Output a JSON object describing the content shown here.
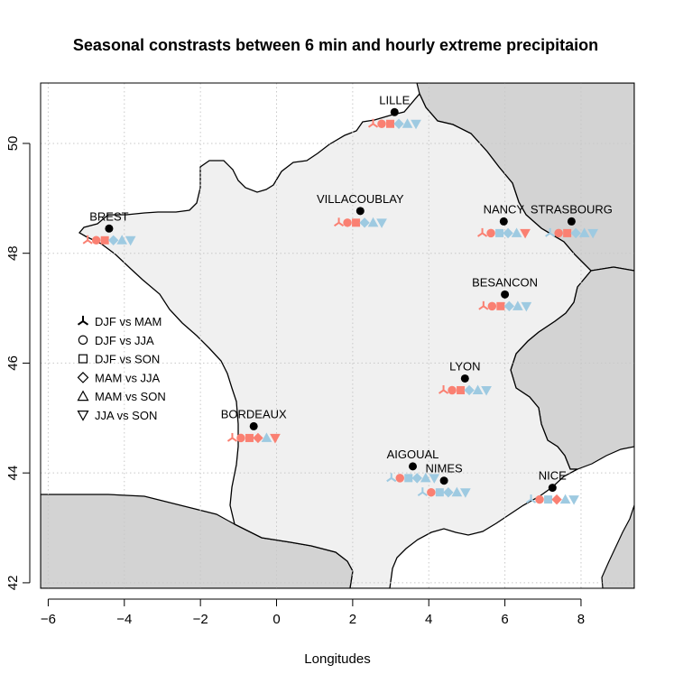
{
  "chart_data": {
    "type": "map",
    "title": "Seasonal constrasts between 6 min and hourly extreme precipitaion",
    "xlabel": "Longitudes",
    "ylabel": "",
    "xlim": [
      -6.2,
      9.4
    ],
    "ylim": [
      41.9,
      51.1
    ],
    "x_ticks": [
      -6,
      -4,
      -2,
      0,
      2,
      4,
      6,
      8
    ],
    "x_tick_labels": [
      "−6",
      "−4",
      "−2",
      "0",
      "2",
      "4",
      "6",
      "8"
    ],
    "y_ticks": [
      42,
      44,
      46,
      48,
      50
    ],
    "y_tick_labels": [
      "42",
      "44",
      "46",
      "48",
      "50"
    ],
    "grid": true,
    "colors": {
      "background_land": "#d3d3d3",
      "france_land": "#f0f0f0",
      "sea": "#ffffff",
      "salmon": "#fa8072",
      "light_blue": "#9ecae1",
      "station": "#000000"
    },
    "legend": {
      "placement": "left-middle",
      "entries": [
        {
          "symbol": "tripod",
          "label": "DJF vs MAM"
        },
        {
          "symbol": "circle",
          "label": "DJF vs JJA"
        },
        {
          "symbol": "square",
          "label": "DJF vs SON"
        },
        {
          "symbol": "diamond",
          "label": "MAM vs JJA"
        },
        {
          "symbol": "triangle-up",
          "label": "MAM vs SON"
        },
        {
          "symbol": "triangle-down",
          "label": "JJA vs SON"
        }
      ]
    },
    "stations": [
      {
        "name": "LILLE",
        "lon": 3.1,
        "lat": 50.57,
        "contrasts": [
          "salmon",
          "salmon",
          "salmon",
          "light_blue",
          "light_blue",
          "light_blue"
        ]
      },
      {
        "name": "VILLACOUBLAY",
        "lon": 2.2,
        "lat": 48.77,
        "contrasts": [
          "salmon",
          "salmon",
          "salmon",
          "light_blue",
          "light_blue",
          "light_blue"
        ]
      },
      {
        "name": "BREST",
        "lon": -4.4,
        "lat": 48.45,
        "contrasts": [
          "salmon",
          "salmon",
          "salmon",
          "light_blue",
          "light_blue",
          "light_blue"
        ]
      },
      {
        "name": "NANCY",
        "lon": 5.97,
        "lat": 48.58,
        "contrasts": [
          "salmon",
          "salmon",
          "light_blue",
          "light_blue",
          "light_blue",
          "salmon"
        ]
      },
      {
        "name": "STRASBOURG",
        "lon": 7.75,
        "lat": 48.58,
        "contrasts": [
          "light_blue",
          "salmon",
          "salmon",
          "light_blue",
          "light_blue",
          "light_blue"
        ]
      },
      {
        "name": "BESANCON",
        "lon": 6.0,
        "lat": 47.25,
        "contrasts": [
          "salmon",
          "salmon",
          "salmon",
          "light_blue",
          "light_blue",
          "light_blue"
        ]
      },
      {
        "name": "LYON",
        "lon": 4.95,
        "lat": 45.72,
        "contrasts": [
          "salmon",
          "salmon",
          "salmon",
          "light_blue",
          "light_blue",
          "light_blue"
        ]
      },
      {
        "name": "BORDEAUX",
        "lon": -0.6,
        "lat": 44.85,
        "contrasts": [
          "salmon",
          "salmon",
          "salmon",
          "salmon",
          "light_blue",
          "salmon"
        ]
      },
      {
        "name": "AIGOUAL",
        "lon": 3.58,
        "lat": 44.12,
        "contrasts": [
          "light_blue",
          "salmon",
          "light_blue",
          "light_blue",
          "light_blue",
          "light_blue"
        ]
      },
      {
        "name": "NIMES",
        "lon": 4.4,
        "lat": 43.86,
        "contrasts": [
          "light_blue",
          "salmon",
          "light_blue",
          "light_blue",
          "light_blue",
          "light_blue"
        ]
      },
      {
        "name": "NICE",
        "lon": 7.25,
        "lat": 43.73,
        "contrasts": [
          "light_blue",
          "salmon",
          "light_blue",
          "salmon",
          "light_blue",
          "light_blue"
        ]
      }
    ]
  }
}
